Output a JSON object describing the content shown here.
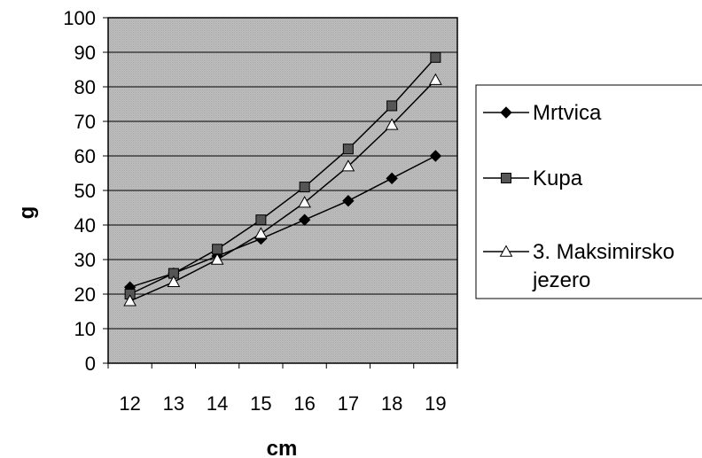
{
  "chart_data": {
    "type": "line",
    "title": "",
    "xlabel": "cm",
    "ylabel": "g",
    "x": [
      12,
      13,
      14,
      15,
      16,
      17,
      18,
      19
    ],
    "ylim": [
      0,
      100
    ],
    "yticks": [
      0,
      10,
      20,
      30,
      40,
      50,
      60,
      70,
      80,
      90,
      100
    ],
    "grid": "horizontal",
    "legend_position": "right",
    "series": [
      {
        "name": "Mrtvica",
        "marker": "diamond",
        "marker_color": "#000000",
        "values": [
          22,
          26,
          31,
          36,
          41.5,
          47,
          53.5,
          60
        ]
      },
      {
        "name": "Kupa",
        "marker": "square",
        "marker_color": "#555555",
        "values": [
          20,
          26,
          33,
          41.5,
          51,
          62,
          74.5,
          88.5
        ]
      },
      {
        "name": "3. Maksimirsko jezero",
        "name_lines": [
          "3. Maksimirsko",
          "jezero"
        ],
        "marker": "triangle",
        "marker_color": "#ffffff",
        "values": [
          18,
          23.5,
          30,
          37.5,
          46.5,
          57,
          69,
          82
        ]
      }
    ]
  }
}
